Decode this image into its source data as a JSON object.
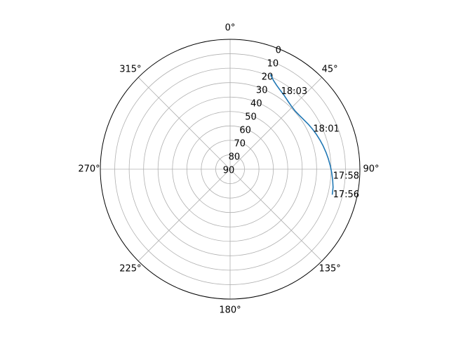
{
  "chart_data": {
    "type": "line",
    "projection": "polar",
    "theta_zero_location": "N",
    "theta_direction": "clockwise",
    "theta_ticks": [
      "0°",
      "45°",
      "90°",
      "135°",
      "180°",
      "225°",
      "270°",
      "315°"
    ],
    "r_ticks": [
      "0",
      "10",
      "20",
      "30",
      "40",
      "50",
      "60",
      "70",
      "80",
      "90"
    ],
    "r_axis_inverted": true,
    "rlim": [
      0,
      90
    ],
    "grid": true,
    "series": [
      {
        "color": "#1f77b4",
        "points": [
          {
            "theta": 104,
            "r": 17
          },
          {
            "theta": 100,
            "r": 17.5
          },
          {
            "theta": 96,
            "r": 18.5
          },
          {
            "theta": 92,
            "r": 19.5
          },
          {
            "theta": 88,
            "r": 20.5
          },
          {
            "theta": 84,
            "r": 21.5
          },
          {
            "theta": 80,
            "r": 22.5
          },
          {
            "theta": 76,
            "r": 23.5
          },
          {
            "theta": 72,
            "r": 24.5
          },
          {
            "theta": 68,
            "r": 25.5
          },
          {
            "theta": 64,
            "r": 26.5
          },
          {
            "theta": 60,
            "r": 27.5
          },
          {
            "theta": 56,
            "r": 28.5
          },
          {
            "theta": 52,
            "r": 29.2
          },
          {
            "theta": 48,
            "r": 29.5
          },
          {
            "theta": 44,
            "r": 29.0
          },
          {
            "theta": 40,
            "r": 28.0
          },
          {
            "theta": 36,
            "r": 26.5
          },
          {
            "theta": 32,
            "r": 25.0
          },
          {
            "theta": 29,
            "r": 23.5
          },
          {
            "theta": 26,
            "r": 21.5
          },
          {
            "theta": 23,
            "r": 18.5
          }
        ]
      }
    ],
    "annotations": [
      {
        "text": "17:56",
        "theta": 104,
        "r": 17
      },
      {
        "text": "17:58",
        "theta": 94,
        "r": 19
      },
      {
        "text": "18:01",
        "theta": 64,
        "r": 26.5
      },
      {
        "text": "18:03",
        "theta": 33,
        "r": 26
      }
    ]
  }
}
